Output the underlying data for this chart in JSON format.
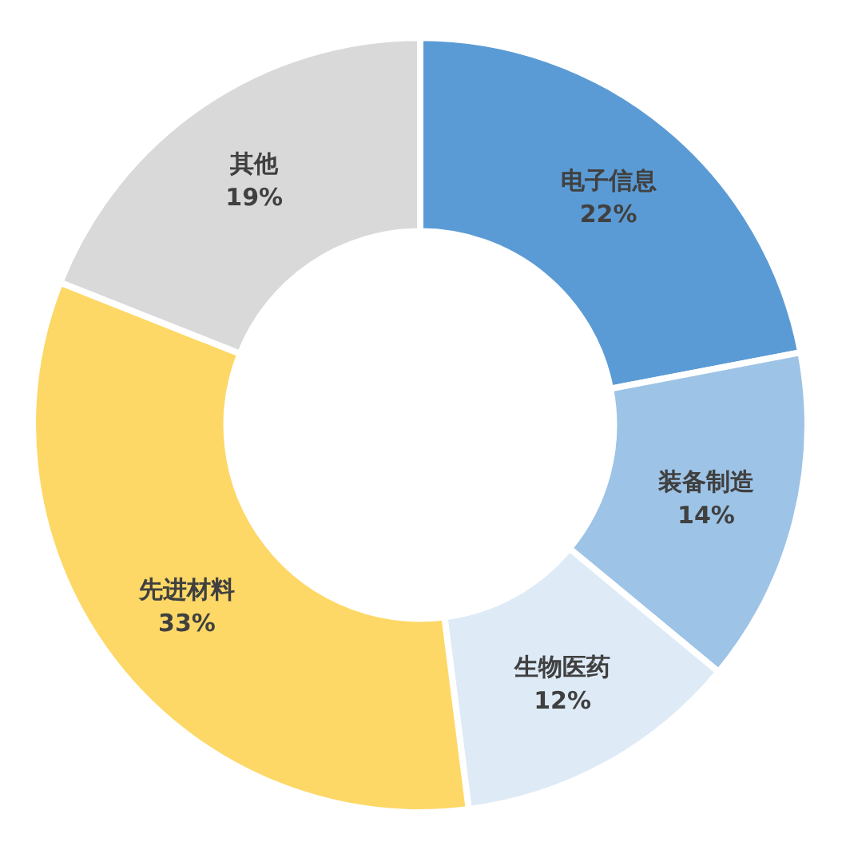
{
  "chart_data": {
    "type": "donut",
    "categories": [
      "电子信息",
      "装备制造",
      "生物医药",
      "先进材料",
      "其他"
    ],
    "values": [
      22,
      14,
      12,
      33,
      19
    ],
    "colors": [
      "#5b9bd5",
      "#9dc3e6",
      "#deebf7",
      "#fdd866",
      "#d9d9d9"
    ],
    "value_labels": [
      "22%",
      "14%",
      "12%",
      "33%",
      "19%"
    ]
  }
}
